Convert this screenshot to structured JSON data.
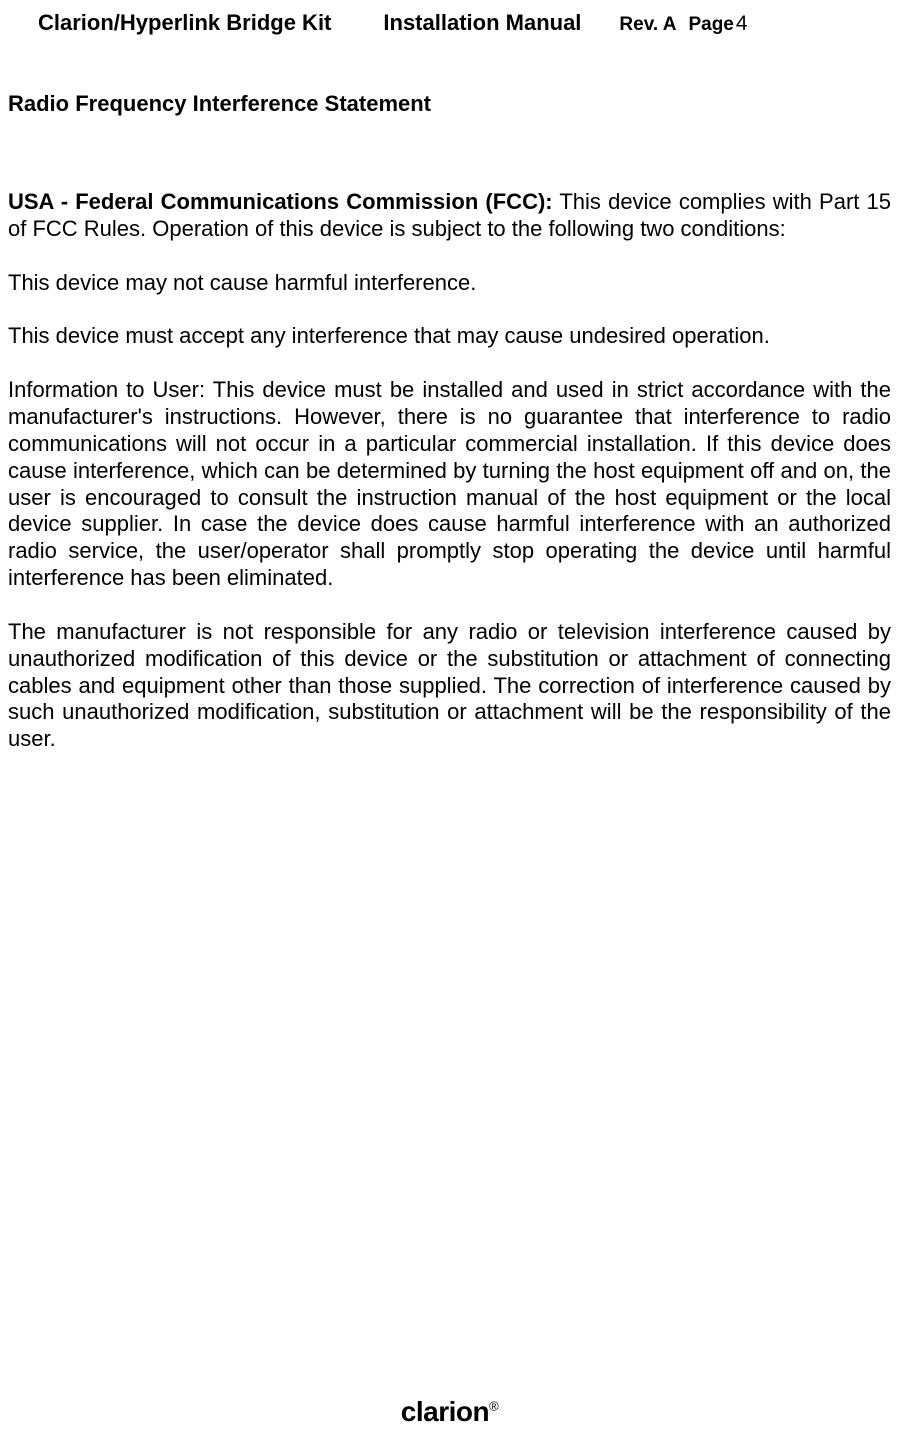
{
  "header": {
    "product": "Clarion/Hyperlink Bridge Kit",
    "manual": "Installation Manual",
    "rev": "Rev. A",
    "page_label": "Page",
    "page_num": "4"
  },
  "section_title": "Radio Frequency Interference Statement",
  "para1_lead": "USA - Federal Communications Commission (FCC):",
  "para1_body": " This device complies with Part 15 of FCC Rules. Operation of this device is subject to the following two conditions:",
  "para2": "This device may not cause harmful interference.",
  "para3": "This device must accept any interference that may cause undesired operation.",
  "para4": "Information to User: This device must be installed and used in strict accordance with the manufacturer's instructions. However, there is no guarantee that interference to radio communications will not occur in a particular commercial installation. If this device does cause interference, which can be determined by turning the host equipment off and on, the user is encouraged to consult the instruction manual of the host equipment or the local device supplier. In case the device does cause harmful interference with an authorized radio service, the user/operator shall promptly stop operating the device until harmful interference has been eliminated.",
  "para5": "The manufacturer is not responsible for any radio or television interference caused by unauthorized modification of this device or the substitution or attachment of connecting cables and equipment other than those supplied. The correction of interference caused by such unauthorized modification, substitution or attachment will be the responsibility of the user.",
  "footer_brand": "clarion",
  "footer_reg": "®"
}
